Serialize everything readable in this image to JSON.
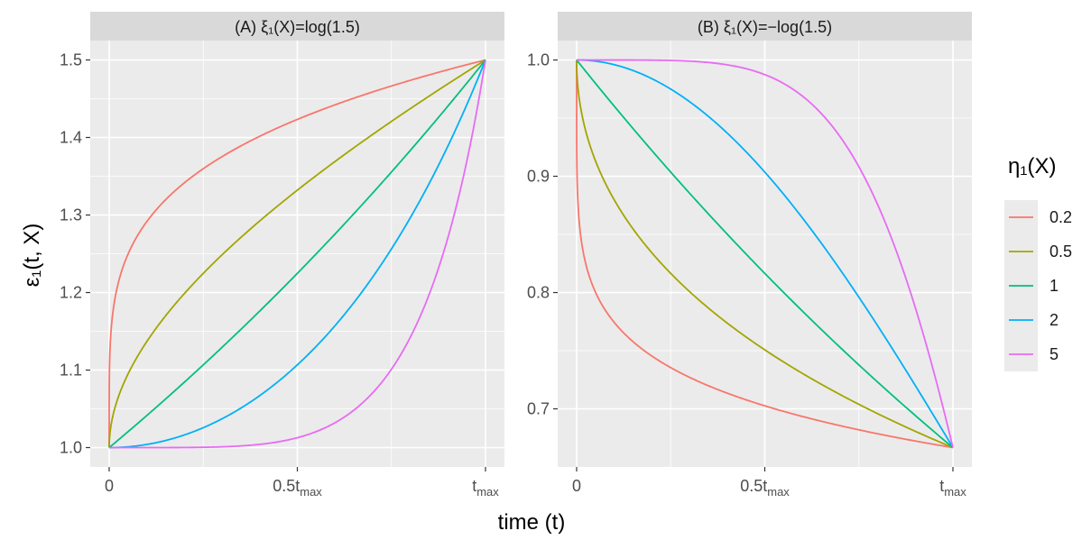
{
  "chart_data": {
    "type": "line",
    "x_label": "time (t)",
    "y_label": "ε₁(t, X)",
    "legend": {
      "title": "η₁(X)",
      "entries": [
        "0.2",
        "0.5",
        "1",
        "2",
        "5"
      ]
    },
    "colors": {
      "0.2": "#F8766D",
      "0.5": "#A3A500",
      "1": "#00BF7D",
      "2": "#00B0F6",
      "5": "#E76BF3",
      "panel_bg": "#EBEBEB",
      "strip_bg": "#D9D9D9",
      "grid": "#FFFFFF"
    },
    "x_ticks": [
      {
        "value": 0,
        "label": "0",
        "sub": ""
      },
      {
        "value": 0.5,
        "label": "0.5t",
        "sub": "max"
      },
      {
        "value": 1,
        "label": "t",
        "sub": "max"
      }
    ],
    "panels": [
      {
        "title": "(A) ξ₁(X)=log(1.5)",
        "xi": 0.405465,
        "ylim": [
          0.975,
          1.525
        ],
        "y_ticks": [
          1.0,
          1.1,
          1.2,
          1.3,
          1.4,
          1.5
        ],
        "y_tick_labels": [
          "1.0",
          "1.1",
          "1.2",
          "1.3",
          "1.4",
          "1.5"
        ],
        "series": [
          {
            "name": "0.2",
            "eta": 0.2
          },
          {
            "name": "0.5",
            "eta": 0.5
          },
          {
            "name": "1",
            "eta": 1
          },
          {
            "name": "2",
            "eta": 2
          },
          {
            "name": "5",
            "eta": 5
          }
        ]
      },
      {
        "title": "(B) ξ₁(X)=−log(1.5)",
        "xi": -0.405465,
        "ylim": [
          0.65,
          1.0167
        ],
        "y_ticks": [
          0.7,
          0.8,
          0.9,
          1.0
        ],
        "y_tick_labels": [
          "0.7",
          "0.8",
          "0.9",
          "1.0"
        ],
        "series": [
          {
            "name": "0.2",
            "eta": 0.2
          },
          {
            "name": "0.5",
            "eta": 0.5
          },
          {
            "name": "1",
            "eta": 1
          },
          {
            "name": "2",
            "eta": 2
          },
          {
            "name": "5",
            "eta": 5
          }
        ]
      }
    ]
  }
}
